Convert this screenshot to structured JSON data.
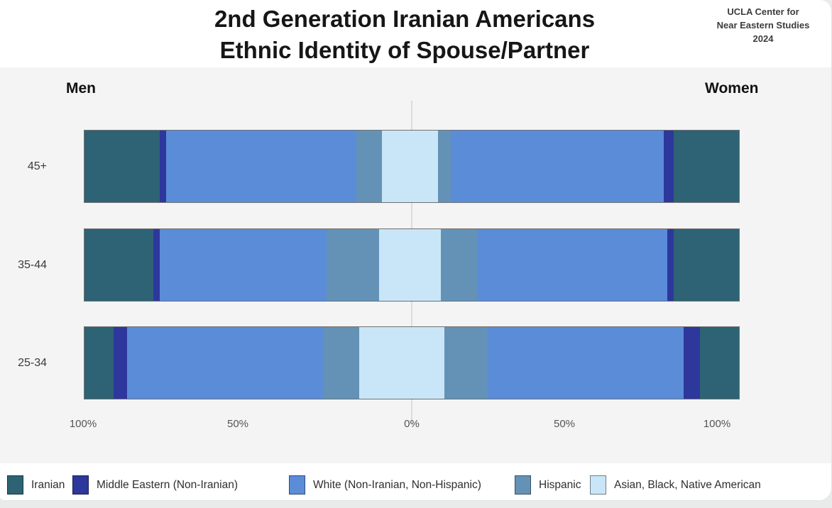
{
  "header": {
    "title_line1": "2nd Generation Iranian Americans",
    "title_line2": "Ethnic Identity of Spouse/Partner",
    "credit_lines": [
      "UCLA Center for",
      "Near Eastern Studies",
      "2024"
    ]
  },
  "chart": {
    "left_group_label": "Men",
    "right_group_label": "Women",
    "axis_ticks": [
      "100%",
      "50%",
      "0%",
      "50%",
      "100%"
    ]
  },
  "legend": [
    {
      "key": "iranian",
      "label": "Iranian",
      "color": "#2d6374"
    },
    {
      "key": "middle_eastern",
      "label": "Middle Eastern (Non-Iranian)",
      "color": "#2d379c"
    },
    {
      "key": "white",
      "label": "White (Non-Iranian, Non-Hispanic)",
      "color": "#5a8cd8"
    },
    {
      "key": "hispanic",
      "label": "Hispanic",
      "color": "#6492b6"
    },
    {
      "key": "asian_black_native",
      "label": "Asian, Black, Native American",
      "color": "#c8e6f7"
    }
  ],
  "chart_data": {
    "type": "bar",
    "subtype": "diverging-stacked-horizontal",
    "title": "2nd Generation Iranian Americans — Ethnic Identity of Spouse/Partner",
    "unit": "percent",
    "age_groups": [
      "45+",
      "35-44",
      "25-34"
    ],
    "category_keys": [
      "iranian",
      "middle_eastern",
      "white",
      "hispanic",
      "asian_black_native"
    ],
    "categories": [
      "Iranian",
      "Middle Eastern (Non-Iranian)",
      "White (Non-Iranian, Non-Hispanic)",
      "Hispanic",
      "Asian, Black, Native American"
    ],
    "series": [
      {
        "name": "Men",
        "side": "left",
        "values": [
          [
            23,
            2,
            58,
            8,
            9
          ],
          [
            21,
            2,
            51,
            16,
            10
          ],
          [
            9,
            4,
            60,
            11,
            16
          ]
        ]
      },
      {
        "name": "Women",
        "side": "right",
        "values": [
          [
            20,
            3,
            65,
            4,
            8
          ],
          [
            20,
            2,
            58,
            11,
            9
          ],
          [
            12,
            5,
            60,
            13,
            10
          ]
        ]
      }
    ],
    "axis_ticks": [
      "100%",
      "50%",
      "0%",
      "50%",
      "100%"
    ],
    "x_range_percent": [
      -100,
      100
    ],
    "legend_position": "bottom",
    "grid": "center-zero-line-only"
  }
}
